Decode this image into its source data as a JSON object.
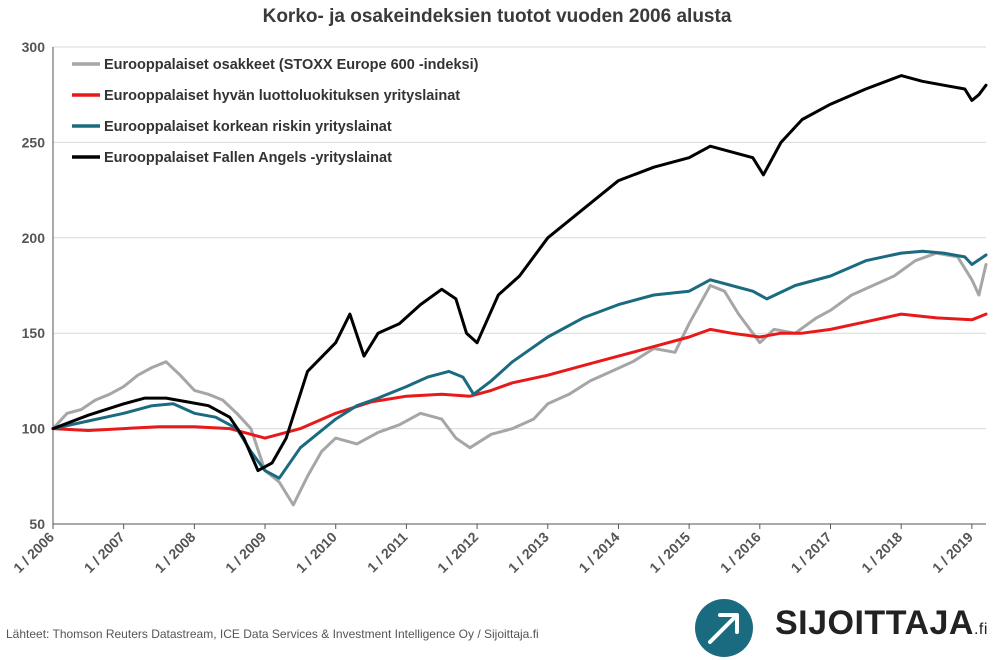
{
  "title": "Korko- ja osakeindeksien tuotot vuoden 2006 alusta",
  "source": "Lähteet: Thomson Reuters Datastream, ICE Data Services & Investment Intelligence Oy / Sijoittaja.fi",
  "logo": {
    "name": "SIJOITTAJA",
    "suffix": ".fi",
    "icon": "arrow-up-right-circle-icon"
  },
  "colors": {
    "stocks": "#a6a6a6",
    "ig": "#e8191b",
    "hy": "#1b6b80",
    "fa": "#000000"
  },
  "chart_data": {
    "type": "line",
    "title": "Korko- ja osakeindeksien tuotot vuoden 2006 alusta",
    "xlabel": "",
    "ylabel": "",
    "ylim": [
      50,
      300
    ],
    "yticks": [
      50,
      100,
      150,
      200,
      250,
      300
    ],
    "xlim": [
      2006.0,
      2019.2
    ],
    "xticks": [
      2006,
      2007,
      2008,
      2009,
      2010,
      2011,
      2012,
      2013,
      2014,
      2015,
      2016,
      2017,
      2018,
      2019
    ],
    "xtick_labels": [
      "1 / 2006",
      "1 / 2007",
      "1 / 2008",
      "1 / 2009",
      "1 / 2010",
      "1 / 2011",
      "1 / 2012",
      "1 / 2013",
      "1 / 2014",
      "1 / 2015",
      "1 / 2016",
      "1 / 2017",
      "1 / 2018",
      "1 / 2019"
    ],
    "grid": "horizontal",
    "legend_position": "top-left",
    "series": [
      {
        "name": "Eurooppalaiset osakkeet (STOXX Europe 600 -indeksi)",
        "color": "#a6a6a6",
        "x": [
          2006.0,
          2006.2,
          2006.4,
          2006.6,
          2006.8,
          2007.0,
          2007.2,
          2007.4,
          2007.6,
          2007.8,
          2008.0,
          2008.2,
          2008.4,
          2008.6,
          2008.8,
          2009.0,
          2009.2,
          2009.4,
          2009.6,
          2009.8,
          2010.0,
          2010.3,
          2010.6,
          2010.9,
          2011.2,
          2011.5,
          2011.7,
          2011.9,
          2012.2,
          2012.5,
          2012.8,
          2013.0,
          2013.3,
          2013.6,
          2013.9,
          2014.2,
          2014.5,
          2014.8,
          2015.0,
          2015.3,
          2015.5,
          2015.7,
          2016.0,
          2016.2,
          2016.5,
          2016.8,
          2017.0,
          2017.3,
          2017.6,
          2017.9,
          2018.2,
          2018.5,
          2018.8,
          2019.0,
          2019.1,
          2019.2
        ],
        "y": [
          100,
          108,
          110,
          115,
          118,
          122,
          128,
          132,
          135,
          128,
          120,
          118,
          115,
          108,
          100,
          78,
          72,
          60,
          75,
          88,
          95,
          92,
          98,
          102,
          108,
          105,
          95,
          90,
          97,
          100,
          105,
          113,
          118,
          125,
          130,
          135,
          142,
          140,
          155,
          175,
          172,
          160,
          145,
          152,
          150,
          158,
          162,
          170,
          175,
          180,
          188,
          192,
          190,
          178,
          170,
          186
        ]
      },
      {
        "name": "Eurooppalaiset hyvän luottoluokituksen yrityslainat",
        "color": "#e8191b",
        "x": [
          2006.0,
          2006.5,
          2007.0,
          2007.5,
          2008.0,
          2008.5,
          2008.8,
          2009.0,
          2009.2,
          2009.5,
          2010.0,
          2010.5,
          2011.0,
          2011.5,
          2011.9,
          2012.2,
          2012.5,
          2013.0,
          2013.5,
          2014.0,
          2014.5,
          2015.0,
          2015.3,
          2015.6,
          2016.0,
          2016.3,
          2016.6,
          2017.0,
          2017.5,
          2018.0,
          2018.5,
          2019.0,
          2019.2
        ],
        "y": [
          100,
          99,
          100,
          101,
          101,
          100,
          97,
          95,
          97,
          100,
          108,
          114,
          117,
          118,
          117,
          120,
          124,
          128,
          133,
          138,
          143,
          148,
          152,
          150,
          148,
          150,
          150,
          152,
          156,
          160,
          158,
          157,
          160
        ]
      },
      {
        "name": "Eurooppalaiset korkean riskin yrityslainat",
        "color": "#1b6b80",
        "x": [
          2006.0,
          2006.5,
          2007.0,
          2007.4,
          2007.7,
          2008.0,
          2008.3,
          2008.6,
          2008.8,
          2009.0,
          2009.2,
          2009.5,
          2010.0,
          2010.3,
          2010.6,
          2011.0,
          2011.3,
          2011.6,
          2011.8,
          2011.95,
          2012.2,
          2012.5,
          2013.0,
          2013.5,
          2014.0,
          2014.5,
          2015.0,
          2015.3,
          2015.6,
          2015.9,
          2016.1,
          2016.5,
          2017.0,
          2017.5,
          2018.0,
          2018.3,
          2018.6,
          2018.9,
          2019.0,
          2019.2
        ],
        "y": [
          100,
          104,
          108,
          112,
          113,
          108,
          106,
          100,
          88,
          78,
          74,
          90,
          105,
          112,
          116,
          122,
          127,
          130,
          127,
          118,
          125,
          135,
          148,
          158,
          165,
          170,
          172,
          178,
          175,
          172,
          168,
          175,
          180,
          188,
          192,
          193,
          192,
          190,
          186,
          191
        ]
      },
      {
        "name": "Eurooppalaiset Fallen Angels -yrityslainat",
        "color": "#000000",
        "x": [
          2006.0,
          2006.5,
          2007.0,
          2007.3,
          2007.6,
          2007.9,
          2008.2,
          2008.5,
          2008.7,
          2008.9,
          2009.1,
          2009.3,
          2009.6,
          2010.0,
          2010.2,
          2010.4,
          2010.6,
          2010.9,
          2011.2,
          2011.5,
          2011.7,
          2011.85,
          2012.0,
          2012.3,
          2012.6,
          2013.0,
          2013.5,
          2014.0,
          2014.5,
          2015.0,
          2015.3,
          2015.6,
          2015.9,
          2016.05,
          2016.3,
          2016.6,
          2017.0,
          2017.5,
          2018.0,
          2018.3,
          2018.6,
          2018.9,
          2019.0,
          2019.1,
          2019.2
        ],
        "y": [
          100,
          107,
          113,
          116,
          116,
          114,
          112,
          106,
          95,
          78,
          82,
          95,
          130,
          145,
          160,
          138,
          150,
          155,
          165,
          173,
          168,
          150,
          145,
          170,
          180,
          200,
          215,
          230,
          237,
          242,
          248,
          245,
          242,
          233,
          250,
          262,
          270,
          278,
          285,
          282,
          280,
          278,
          272,
          275,
          280
        ]
      }
    ]
  }
}
